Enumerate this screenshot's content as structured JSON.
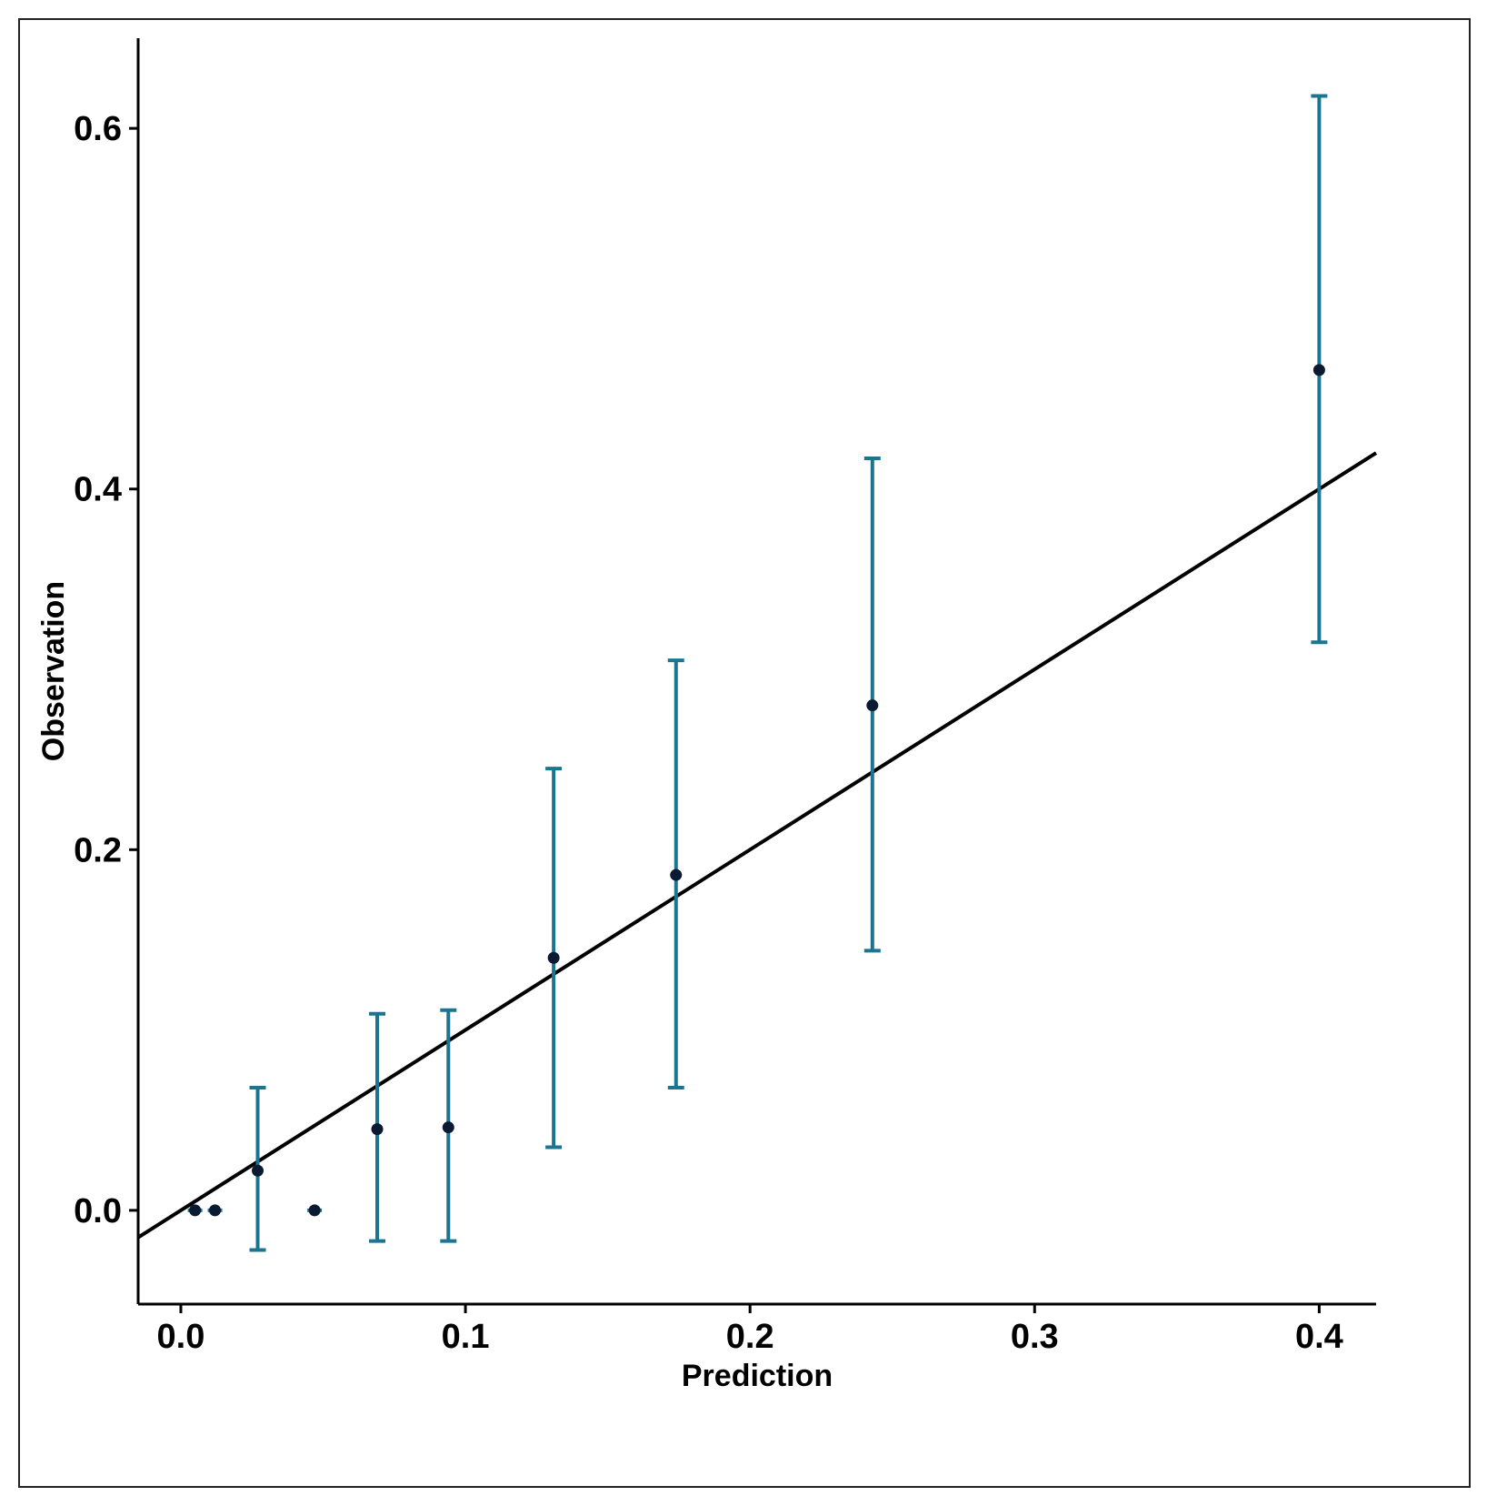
{
  "colors": {
    "errorbar": "#1b7591",
    "point": "#0a1a33",
    "line": "#000000",
    "axis": "#000000",
    "frame": "#222222"
  },
  "chart_data": {
    "type": "scatter",
    "title": "",
    "xlabel": "Prediction",
    "ylabel": "Observation",
    "xlim": [
      -0.015,
      0.42
    ],
    "ylim": [
      -0.052,
      0.65
    ],
    "xticks": [
      0.0,
      0.1,
      0.2,
      0.3,
      0.4
    ],
    "xtick_labels": [
      "0.0",
      "0.1",
      "0.2",
      "0.3",
      "0.4"
    ],
    "yticks": [
      0.0,
      0.2,
      0.4,
      0.6
    ],
    "ytick_labels": [
      "0.0",
      "0.2",
      "0.4",
      "0.6"
    ],
    "grid": false,
    "points": [
      {
        "x": 0.005,
        "y": 0.0,
        "ylow": null,
        "yhigh": null
      },
      {
        "x": 0.012,
        "y": 0.0,
        "ylow": null,
        "yhigh": null
      },
      {
        "x": 0.027,
        "y": 0.022,
        "ylow": -0.022,
        "yhigh": 0.068
      },
      {
        "x": 0.047,
        "y": 0.0,
        "ylow": null,
        "yhigh": null
      },
      {
        "x": 0.069,
        "y": 0.045,
        "ylow": -0.017,
        "yhigh": 0.109
      },
      {
        "x": 0.094,
        "y": 0.046,
        "ylow": -0.017,
        "yhigh": 0.111
      },
      {
        "x": 0.131,
        "y": 0.14,
        "ylow": 0.035,
        "yhigh": 0.245
      },
      {
        "x": 0.174,
        "y": 0.186,
        "ylow": 0.068,
        "yhigh": 0.305
      },
      {
        "x": 0.243,
        "y": 0.28,
        "ylow": 0.144,
        "yhigh": 0.417
      },
      {
        "x": 0.4,
        "y": 0.466,
        "ylow": 0.315,
        "yhigh": 0.618
      }
    ],
    "reference_line": {
      "from": [
        -0.015,
        -0.015
      ],
      "to": [
        0.42,
        0.42
      ]
    }
  }
}
